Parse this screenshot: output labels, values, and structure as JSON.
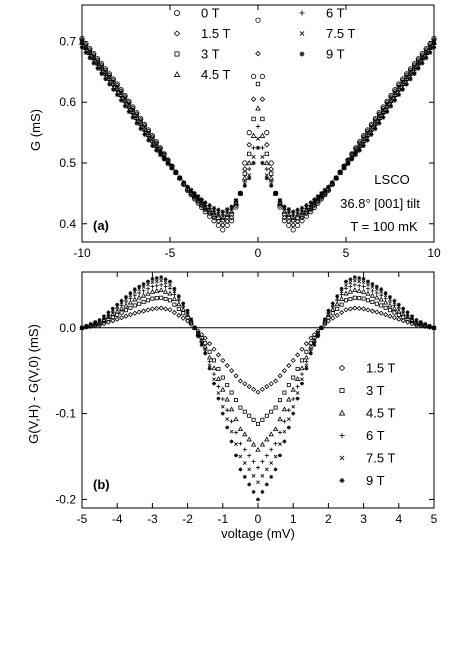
{
  "chart_data": [
    {
      "type": "scatter",
      "panel_label": "(a)",
      "xlabel": "",
      "ylabel": "G (mS)",
      "xlim": [
        -10,
        10
      ],
      "ylim": [
        0.37,
        0.76
      ],
      "xticks": [
        -10,
        -5,
        0,
        5,
        10
      ],
      "yticks": [
        0.4,
        0.5,
        0.6,
        0.7
      ],
      "xtick_labels": [
        "-10",
        "-5",
        "0",
        "5",
        "10"
      ],
      "ytick_labels": [
        "0.4",
        "0.5",
        "0.6",
        "0.7"
      ],
      "annotations": [
        "LSCO",
        "36.8° [001] tilt",
        "T = 100 mK"
      ],
      "legend": {
        "placement": "top",
        "columns": 2
      },
      "series": [
        {
          "name": "0 T",
          "marker": "circle",
          "x": [
            -10,
            -8,
            -6,
            -4,
            -3,
            -2.5,
            -2,
            -1.5,
            -1,
            -0.5,
            0,
            0.5,
            1,
            1.5,
            2,
            2.5,
            3,
            4,
            6,
            8,
            10
          ],
          "y": [
            0.705,
            0.63,
            0.545,
            0.455,
            0.42,
            0.405,
            0.39,
            0.405,
            0.45,
            0.55,
            0.735,
            0.55,
            0.45,
            0.405,
            0.39,
            0.405,
            0.42,
            0.455,
            0.545,
            0.63,
            0.705
          ]
        },
        {
          "name": "1.5 T",
          "marker": "diamond",
          "x": [
            -10,
            -8,
            -6,
            -4,
            -3,
            -2.5,
            -2,
            -1.5,
            -1,
            -0.5,
            0,
            0.5,
            1,
            1.5,
            2,
            2.5,
            3,
            4,
            6,
            8,
            10
          ],
          "y": [
            0.703,
            0.628,
            0.543,
            0.456,
            0.423,
            0.41,
            0.398,
            0.41,
            0.45,
            0.53,
            0.68,
            0.53,
            0.45,
            0.41,
            0.398,
            0.41,
            0.423,
            0.456,
            0.543,
            0.628,
            0.703
          ]
        },
        {
          "name": "3 T",
          "marker": "square",
          "x": [
            -10,
            -8,
            -6,
            -4,
            -3,
            -2.5,
            -2,
            -1.5,
            -1,
            -0.5,
            0,
            0.5,
            1,
            1.5,
            2,
            2.5,
            3,
            4,
            6,
            8,
            10
          ],
          "y": [
            0.7,
            0.625,
            0.54,
            0.457,
            0.425,
            0.414,
            0.406,
            0.416,
            0.45,
            0.515,
            0.63,
            0.515,
            0.45,
            0.416,
            0.406,
            0.414,
            0.425,
            0.457,
            0.54,
            0.625,
            0.7
          ]
        },
        {
          "name": "4.5 T",
          "marker": "triangle",
          "x": [
            -10,
            -8,
            -6,
            -4,
            -3,
            -2.5,
            -2,
            -1.5,
            -1,
            -0.5,
            0,
            0.5,
            1,
            1.5,
            2,
            2.5,
            3,
            4,
            6,
            8,
            10
          ],
          "y": [
            0.698,
            0.622,
            0.537,
            0.458,
            0.428,
            0.418,
            0.41,
            0.42,
            0.45,
            0.5,
            0.59,
            0.5,
            0.45,
            0.42,
            0.41,
            0.418,
            0.428,
            0.458,
            0.537,
            0.622,
            0.698
          ]
        },
        {
          "name": "6 T",
          "marker": "plus",
          "x": [
            -10,
            -8,
            -6,
            -4,
            -3,
            -2.5,
            -2,
            -1.5,
            -1,
            -0.5,
            0,
            0.5,
            1,
            1.5,
            2,
            2.5,
            3,
            4,
            6,
            8,
            10
          ],
          "y": [
            0.696,
            0.619,
            0.534,
            0.459,
            0.43,
            0.421,
            0.414,
            0.424,
            0.45,
            0.49,
            0.56,
            0.49,
            0.45,
            0.424,
            0.414,
            0.421,
            0.43,
            0.459,
            0.534,
            0.619,
            0.696
          ]
        },
        {
          "name": "7.5 T",
          "marker": "cross",
          "x": [
            -10,
            -8,
            -6,
            -4,
            -3,
            -2.5,
            -2,
            -1.5,
            -1,
            -0.5,
            0,
            0.5,
            1,
            1.5,
            2,
            2.5,
            3,
            4,
            6,
            8,
            10
          ],
          "y": [
            0.694,
            0.616,
            0.531,
            0.46,
            0.432,
            0.423,
            0.417,
            0.426,
            0.45,
            0.48,
            0.54,
            0.48,
            0.45,
            0.426,
            0.417,
            0.423,
            0.432,
            0.46,
            0.531,
            0.616,
            0.694
          ]
        },
        {
          "name": "9 T",
          "marker": "star",
          "x": [
            -10,
            -8,
            -6,
            -4,
            -3,
            -2.5,
            -2,
            -1.5,
            -1,
            -0.5,
            0,
            0.5,
            1,
            1.5,
            2,
            2.5,
            3,
            4,
            6,
            8,
            10
          ],
          "y": [
            0.69,
            0.612,
            0.528,
            0.461,
            0.435,
            0.426,
            0.42,
            0.428,
            0.45,
            0.475,
            0.525,
            0.475,
            0.45,
            0.428,
            0.42,
            0.426,
            0.435,
            0.461,
            0.528,
            0.612,
            0.69
          ]
        }
      ]
    },
    {
      "type": "scatter",
      "panel_label": "(b)",
      "xlabel": "voltage (mV)",
      "ylabel": "G(V,H) - G(V,0) (mS)",
      "xlim": [
        -5,
        5
      ],
      "ylim": [
        -0.21,
        0.065
      ],
      "xticks": [
        -5,
        -4,
        -3,
        -2,
        -1,
        0,
        1,
        2,
        3,
        4,
        5
      ],
      "yticks": [
        -0.2,
        -0.1,
        0.0
      ],
      "xtick_labels": [
        "-5",
        "-4",
        "-3",
        "-2",
        "-1",
        "0",
        "1",
        "2",
        "3",
        "4",
        "5"
      ],
      "ytick_labels": [
        "-0.2",
        "-0.1",
        "0.0"
      ],
      "zero_line": true,
      "legend": {
        "placement": "right",
        "columns": 1
      },
      "series": [
        {
          "name": "1.5 T",
          "marker": "diamond",
          "x": [
            -5,
            -4.5,
            -4,
            -3.5,
            -3,
            -2.75,
            -2.5,
            -2,
            -1.8,
            -1.5,
            -1,
            -0.5,
            0,
            0.5,
            1,
            1.5,
            1.8,
            2,
            2.5,
            2.75,
            3,
            3.5,
            4,
            4.5,
            5
          ],
          "y": [
            0,
            0.003,
            0.01,
            0.017,
            0.022,
            0.023,
            0.021,
            0.008,
            0,
            -0.012,
            -0.038,
            -0.062,
            -0.075,
            -0.062,
            -0.038,
            -0.012,
            0,
            0.008,
            0.021,
            0.023,
            0.022,
            0.017,
            0.01,
            0.003,
            0
          ]
        },
        {
          "name": "3 T",
          "marker": "square",
          "x": [
            -5,
            -4.5,
            -4,
            -3.5,
            -3,
            -2.75,
            -2.5,
            -2,
            -1.8,
            -1.5,
            -1,
            -0.5,
            0,
            0.5,
            1,
            1.5,
            1.8,
            2,
            2.5,
            2.75,
            3,
            3.5,
            4,
            4.5,
            5
          ],
          "y": [
            0,
            0.005,
            0.015,
            0.026,
            0.034,
            0.035,
            0.032,
            0.012,
            0,
            -0.018,
            -0.058,
            -0.093,
            -0.112,
            -0.093,
            -0.058,
            -0.018,
            0,
            0.012,
            0.032,
            0.035,
            0.034,
            0.026,
            0.015,
            0.005,
            0
          ]
        },
        {
          "name": "4.5 T",
          "marker": "triangle",
          "x": [
            -5,
            -4.5,
            -4,
            -3.5,
            -3,
            -2.75,
            -2.5,
            -2,
            -1.8,
            -1.5,
            -1,
            -0.5,
            0,
            0.5,
            1,
            1.5,
            1.8,
            2,
            2.5,
            2.75,
            3,
            3.5,
            4,
            4.5,
            5
          ],
          "y": [
            0,
            0.006,
            0.019,
            0.033,
            0.042,
            0.044,
            0.04,
            0.015,
            0,
            -0.022,
            -0.072,
            -0.118,
            -0.142,
            -0.118,
            -0.072,
            -0.022,
            0,
            0.015,
            0.04,
            0.044,
            0.042,
            0.033,
            0.019,
            0.006,
            0
          ]
        },
        {
          "name": "6 T",
          "marker": "plus",
          "x": [
            -5,
            -4.5,
            -4,
            -3.5,
            -3,
            -2.75,
            -2.5,
            -2,
            -1.8,
            -1.5,
            -1,
            -0.5,
            0,
            0.5,
            1,
            1.5,
            1.8,
            2,
            2.5,
            2.75,
            3,
            3.5,
            4,
            4.5,
            5
          ],
          "y": [
            0,
            0.007,
            0.022,
            0.038,
            0.048,
            0.05,
            0.046,
            0.017,
            0,
            -0.025,
            -0.083,
            -0.135,
            -0.163,
            -0.135,
            -0.083,
            -0.025,
            0,
            0.017,
            0.046,
            0.05,
            0.048,
            0.038,
            0.022,
            0.007,
            0
          ]
        },
        {
          "name": "7.5 T",
          "marker": "cross",
          "x": [
            -5,
            -4.5,
            -4,
            -3.5,
            -3,
            -2.75,
            -2.5,
            -2,
            -1.8,
            -1.5,
            -1,
            -0.5,
            0,
            0.5,
            1,
            1.5,
            1.8,
            2,
            2.5,
            2.75,
            3,
            3.5,
            4,
            4.5,
            5
          ],
          "y": [
            0,
            0.008,
            0.025,
            0.042,
            0.053,
            0.055,
            0.05,
            0.019,
            0,
            -0.028,
            -0.092,
            -0.15,
            -0.18,
            -0.15,
            -0.092,
            -0.028,
            0,
            0.019,
            0.05,
            0.055,
            0.053,
            0.042,
            0.025,
            0.008,
            0
          ]
        },
        {
          "name": "9 T",
          "marker": "star",
          "x": [
            -5,
            -4.5,
            -4,
            -3.5,
            -3,
            -2.75,
            -2.5,
            -2,
            -1.8,
            -1.5,
            -1,
            -0.5,
            0,
            0.5,
            1,
            1.5,
            1.8,
            2,
            2.5,
            2.75,
            3,
            3.5,
            4,
            4.5,
            5
          ],
          "y": [
            0,
            0.009,
            0.027,
            0.045,
            0.057,
            0.059,
            0.054,
            0.02,
            0,
            -0.03,
            -0.1,
            -0.165,
            -0.2,
            -0.165,
            -0.1,
            -0.03,
            0,
            0.02,
            0.054,
            0.059,
            0.057,
            0.045,
            0.027,
            0.009,
            0
          ]
        }
      ]
    }
  ]
}
